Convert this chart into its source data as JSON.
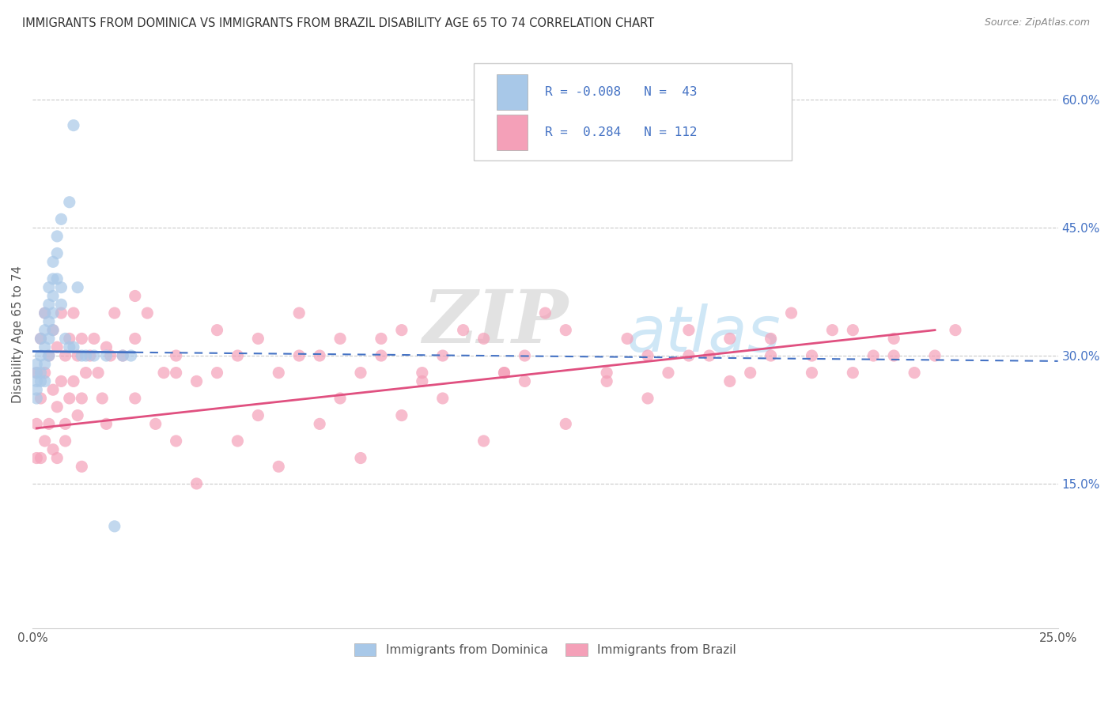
{
  "title": "IMMIGRANTS FROM DOMINICA VS IMMIGRANTS FROM BRAZIL DISABILITY AGE 65 TO 74 CORRELATION CHART",
  "source": "Source: ZipAtlas.com",
  "ylabel": "Disability Age 65 to 74",
  "right_yticks": [
    "15.0%",
    "30.0%",
    "45.0%",
    "60.0%"
  ],
  "right_ytick_vals": [
    0.15,
    0.3,
    0.45,
    0.6
  ],
  "watermark_zip": "ZIP",
  "watermark_atlas": "atlas",
  "color_dominica": "#a8c8e8",
  "color_brazil": "#f4a0b8",
  "color_dominica_line": "#4472c4",
  "color_brazil_line": "#e05080",
  "color_text_blue": "#4472c4",
  "xlim": [
    0.0,
    0.25
  ],
  "ylim": [
    -0.02,
    0.67
  ],
  "dom_x": [
    0.001,
    0.001,
    0.001,
    0.001,
    0.001,
    0.002,
    0.002,
    0.002,
    0.002,
    0.003,
    0.003,
    0.003,
    0.003,
    0.003,
    0.004,
    0.004,
    0.004,
    0.004,
    0.004,
    0.005,
    0.005,
    0.005,
    0.005,
    0.005,
    0.006,
    0.006,
    0.006,
    0.007,
    0.007,
    0.007,
    0.008,
    0.009,
    0.009,
    0.01,
    0.01,
    0.011,
    0.012,
    0.013,
    0.015,
    0.018,
    0.02,
    0.022,
    0.024
  ],
  "dom_y": [
    0.29,
    0.28,
    0.27,
    0.26,
    0.25,
    0.32,
    0.3,
    0.28,
    0.27,
    0.35,
    0.33,
    0.31,
    0.29,
    0.27,
    0.38,
    0.36,
    0.34,
    0.32,
    0.3,
    0.41,
    0.39,
    0.37,
    0.35,
    0.33,
    0.44,
    0.42,
    0.39,
    0.46,
    0.38,
    0.36,
    0.32,
    0.48,
    0.31,
    0.57,
    0.31,
    0.38,
    0.3,
    0.3,
    0.3,
    0.3,
    0.1,
    0.3,
    0.3
  ],
  "bra_x": [
    0.001,
    0.001,
    0.001,
    0.002,
    0.002,
    0.002,
    0.003,
    0.003,
    0.003,
    0.004,
    0.004,
    0.005,
    0.005,
    0.005,
    0.006,
    0.006,
    0.006,
    0.007,
    0.007,
    0.008,
    0.008,
    0.009,
    0.009,
    0.01,
    0.01,
    0.011,
    0.011,
    0.012,
    0.012,
    0.013,
    0.014,
    0.015,
    0.016,
    0.017,
    0.018,
    0.019,
    0.02,
    0.022,
    0.025,
    0.028,
    0.032,
    0.035,
    0.04,
    0.045,
    0.05,
    0.055,
    0.06,
    0.065,
    0.07,
    0.075,
    0.08,
    0.085,
    0.09,
    0.095,
    0.1,
    0.11,
    0.115,
    0.12,
    0.13,
    0.14,
    0.145,
    0.15,
    0.155,
    0.16,
    0.165,
    0.17,
    0.175,
    0.18,
    0.185,
    0.19,
    0.195,
    0.2,
    0.205,
    0.21,
    0.215,
    0.22,
    0.225,
    0.025,
    0.03,
    0.035,
    0.04,
    0.05,
    0.06,
    0.07,
    0.08,
    0.09,
    0.1,
    0.11,
    0.12,
    0.13,
    0.14,
    0.15,
    0.16,
    0.17,
    0.18,
    0.19,
    0.2,
    0.21,
    0.008,
    0.012,
    0.018,
    0.025,
    0.035,
    0.045,
    0.055,
    0.065,
    0.075,
    0.085,
    0.095,
    0.105,
    0.115,
    0.125
  ],
  "bra_y": [
    0.28,
    0.22,
    0.18,
    0.32,
    0.25,
    0.18,
    0.35,
    0.28,
    0.2,
    0.3,
    0.22,
    0.33,
    0.26,
    0.19,
    0.31,
    0.24,
    0.18,
    0.35,
    0.27,
    0.3,
    0.22,
    0.32,
    0.25,
    0.35,
    0.27,
    0.3,
    0.23,
    0.32,
    0.25,
    0.28,
    0.3,
    0.32,
    0.28,
    0.25,
    0.31,
    0.3,
    0.35,
    0.3,
    0.32,
    0.35,
    0.28,
    0.3,
    0.27,
    0.33,
    0.3,
    0.32,
    0.28,
    0.35,
    0.3,
    0.32,
    0.28,
    0.3,
    0.33,
    0.28,
    0.3,
    0.32,
    0.28,
    0.3,
    0.33,
    0.27,
    0.32,
    0.3,
    0.28,
    0.33,
    0.3,
    0.32,
    0.28,
    0.3,
    0.35,
    0.3,
    0.33,
    0.28,
    0.3,
    0.32,
    0.28,
    0.3,
    0.33,
    0.37,
    0.22,
    0.28,
    0.15,
    0.2,
    0.17,
    0.22,
    0.18,
    0.23,
    0.25,
    0.2,
    0.27,
    0.22,
    0.28,
    0.25,
    0.3,
    0.27,
    0.32,
    0.28,
    0.33,
    0.3,
    0.2,
    0.17,
    0.22,
    0.25,
    0.2,
    0.28,
    0.23,
    0.3,
    0.25,
    0.32,
    0.27,
    0.33,
    0.28,
    0.35
  ],
  "dom_line_x": [
    0.001,
    0.22
  ],
  "dom_line_y": [
    0.305,
    0.295
  ],
  "bra_line_x": [
    0.001,
    0.22
  ],
  "bra_line_y": [
    0.215,
    0.33
  ]
}
